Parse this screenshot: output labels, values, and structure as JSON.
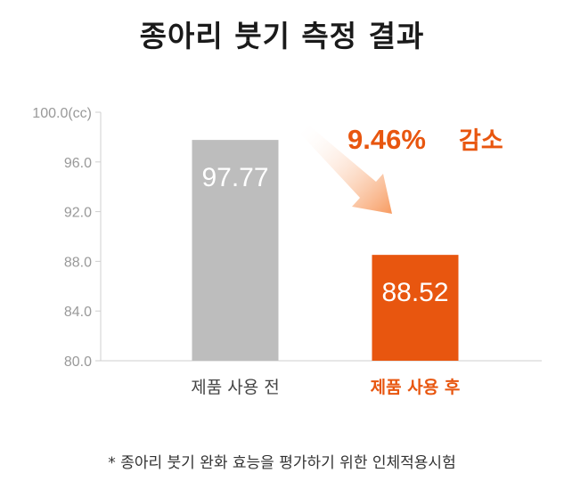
{
  "title": "종아리 붓기 측정 결과",
  "footnote": "* 종아리 붓기 완화 효능을 평가하기 위한 인체적용시험",
  "annotation": {
    "text_number": "9.46%",
    "text_word": "감소"
  },
  "colors": {
    "before_bar": "#bdbdbd",
    "after_bar": "#e8560f",
    "accent": "#e8560f",
    "axis": "#cfcfcf",
    "tick_label": "#999999",
    "category_label": "#444444"
  },
  "chart_data": {
    "type": "bar",
    "title": "종아리 붓기 측정 결과",
    "categories": [
      "제품 사용 전",
      "제품 사용 후"
    ],
    "values": [
      97.77,
      88.52
    ],
    "data_labels": [
      "97.77",
      "88.52"
    ],
    "ylim": [
      80.0,
      100.0
    ],
    "yticks": [
      80.0,
      84.0,
      88.0,
      92.0,
      96.0,
      100.0
    ],
    "ytick_labels": [
      "80.0",
      "84.0",
      "88.0",
      "92.0",
      "96.0",
      "100.0(cc)"
    ],
    "xlabel": "",
    "ylabel": "",
    "grid": false,
    "legend": "none"
  }
}
